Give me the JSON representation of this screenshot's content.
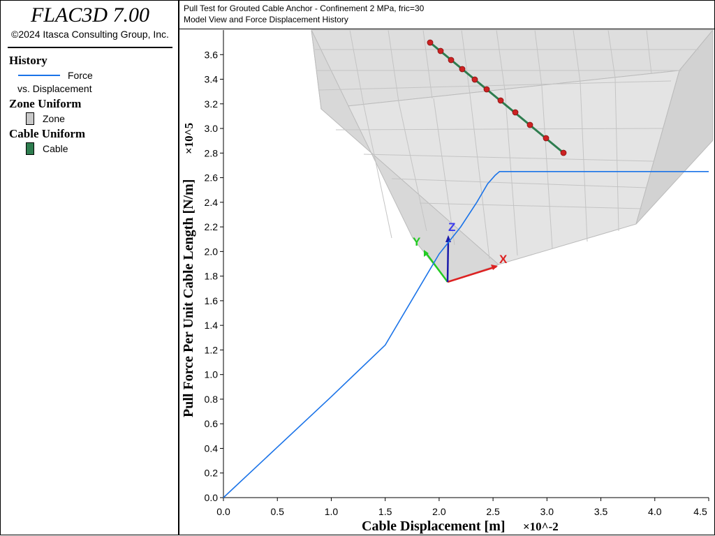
{
  "app": {
    "title": "FLAC3D 7.00",
    "copyright": "©2024 Itasca Consulting Group, Inc."
  },
  "legend": {
    "history_heading": "History",
    "history_entry_line1": "Force",
    "history_entry_line2": "vs. Displacement",
    "zone_heading": "Zone Uniform",
    "zone_label": "Zone",
    "cable_heading": "Cable Uniform",
    "cable_label": "Cable"
  },
  "header": {
    "line1": "Pull Test for Grouted Cable Anchor - Confinement 2 MPa, fric=30",
    "line2": "Model View and Force Displacement History"
  },
  "colors": {
    "force_line": "#1a73e8",
    "zone": "#c8c8c8",
    "cable": "#2e7d4f",
    "cable_node": "#cc2222",
    "axis_x": "#dd2222",
    "axis_y": "#22cc22",
    "axis_z": "#1a1aaa"
  },
  "axes_triad": {
    "x_label": "X",
    "y_label": "Y",
    "z_label": "Z"
  },
  "chart_data": {
    "type": "line",
    "title": "",
    "xlabel": "Cable Displacement [m]",
    "xlabel_multiplier": "×10^-2",
    "ylabel": "Pull Force Per Unit Cable Length [N/m]",
    "ylabel_multiplier": "×10^5",
    "xlim": [
      0,
      4.5
    ],
    "ylim": [
      0,
      3.8
    ],
    "x_ticks": [
      "0.0",
      "0.5",
      "1.0",
      "1.5",
      "2.0",
      "2.5",
      "3.0",
      "3.5",
      "4.0",
      "4.5"
    ],
    "y_ticks": [
      "0.0",
      "0.2",
      "0.4",
      "0.6",
      "0.8",
      "1.0",
      "1.2",
      "1.4",
      "1.6",
      "1.8",
      "2.0",
      "2.2",
      "2.4",
      "2.6",
      "2.8",
      "3.0",
      "3.2",
      "3.4",
      "3.6"
    ],
    "grid": false,
    "series": [
      {
        "name": "Force vs. Displacement",
        "x": [
          0.0,
          0.5,
          1.0,
          1.5,
          2.0,
          2.2,
          2.35,
          2.45,
          2.52,
          2.56,
          3.0,
          3.5,
          4.0,
          4.5
        ],
        "y": [
          0.0,
          0.41,
          0.82,
          1.24,
          1.98,
          2.2,
          2.4,
          2.55,
          2.62,
          2.65,
          2.65,
          2.65,
          2.65,
          2.65
        ]
      }
    ]
  }
}
